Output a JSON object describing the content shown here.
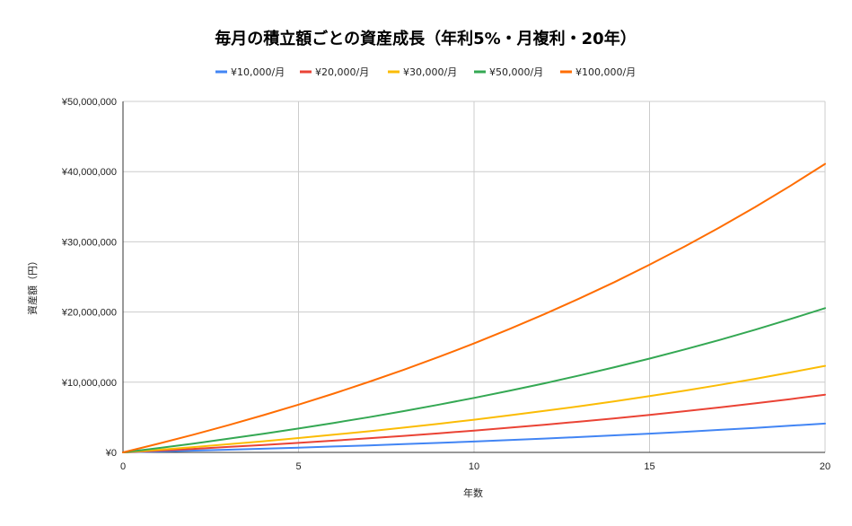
{
  "chart_data": {
    "type": "line",
    "title": "毎月の積立額ごとの資産成長（年利5%・月複利・20年）",
    "xlabel": "年数",
    "ylabel": "資産額（円）",
    "xlim": [
      0,
      20
    ],
    "ylim": [
      0,
      50000000
    ],
    "x_ticks": [
      0,
      5,
      10,
      15,
      20
    ],
    "x_tick_labels": [
      "0",
      "5",
      "10",
      "15",
      "20"
    ],
    "y_ticks": [
      0,
      10000000,
      20000000,
      30000000,
      40000000,
      50000000
    ],
    "y_tick_labels": [
      "¥0",
      "¥10,000,000",
      "¥20,000,000",
      "¥30,000,000",
      "¥40,000,000",
      "¥50,000,000"
    ],
    "grid": true,
    "legend_position": "top",
    "x": [
      0,
      1,
      2,
      3,
      4,
      5,
      6,
      7,
      8,
      9,
      10,
      11,
      12,
      13,
      14,
      15,
      16,
      17,
      18,
      19,
      20
    ],
    "series": [
      {
        "name": "¥10,000/月",
        "color": "#4285F4",
        "values": [
          0,
          122790,
          251864,
          387547,
          530174,
          680101,
          837698,
          1003358,
          1177497,
          1360548,
          1552970,
          1755240,
          1967866,
          2191380,
          2426327,
          2673300,
          2932914,
          3205820,
          3492696,
          3794252,
          4110336
        ]
      },
      {
        "name": "¥20,000/月",
        "color": "#EA4335",
        "values": [
          0,
          245580,
          503728,
          775094,
          1060348,
          1360202,
          1675396,
          2006716,
          2354994,
          2721096,
          3105940,
          3510480,
          3935732,
          4382760,
          4852654,
          5346600,
          5865828,
          6411640,
          6985392,
          7588504,
          8220672
        ]
      },
      {
        "name": "¥30,000/月",
        "color": "#FBBC04",
        "values": [
          0,
          368370,
          755592,
          1162641,
          1590522,
          2040303,
          2513094,
          3010074,
          3532491,
          4081644,
          4658910,
          5265720,
          5903598,
          6574140,
          7278981,
          8019900,
          8798742,
          9617460,
          10478088,
          11382756,
          12331008
        ]
      },
      {
        "name": "¥50,000/月",
        "color": "#34A853",
        "values": [
          0,
          613950,
          1259320,
          1937735,
          2650870,
          3400505,
          4188490,
          5016790,
          5887485,
          6802740,
          7764850,
          8776200,
          9839330,
          10956900,
          12131635,
          13366500,
          14664570,
          16029100,
          17463480,
          18971260,
          20551680
        ]
      },
      {
        "name": "¥100,000/月",
        "color": "#FF6D01",
        "values": [
          0,
          1227900,
          2518640,
          3875470,
          5301740,
          6801010,
          8376980,
          10033580,
          11774970,
          13605480,
          15529700,
          17552400,
          19678660,
          21913800,
          24263270,
          26733000,
          29329140,
          32058200,
          34926960,
          37942520,
          41103360
        ]
      }
    ]
  }
}
